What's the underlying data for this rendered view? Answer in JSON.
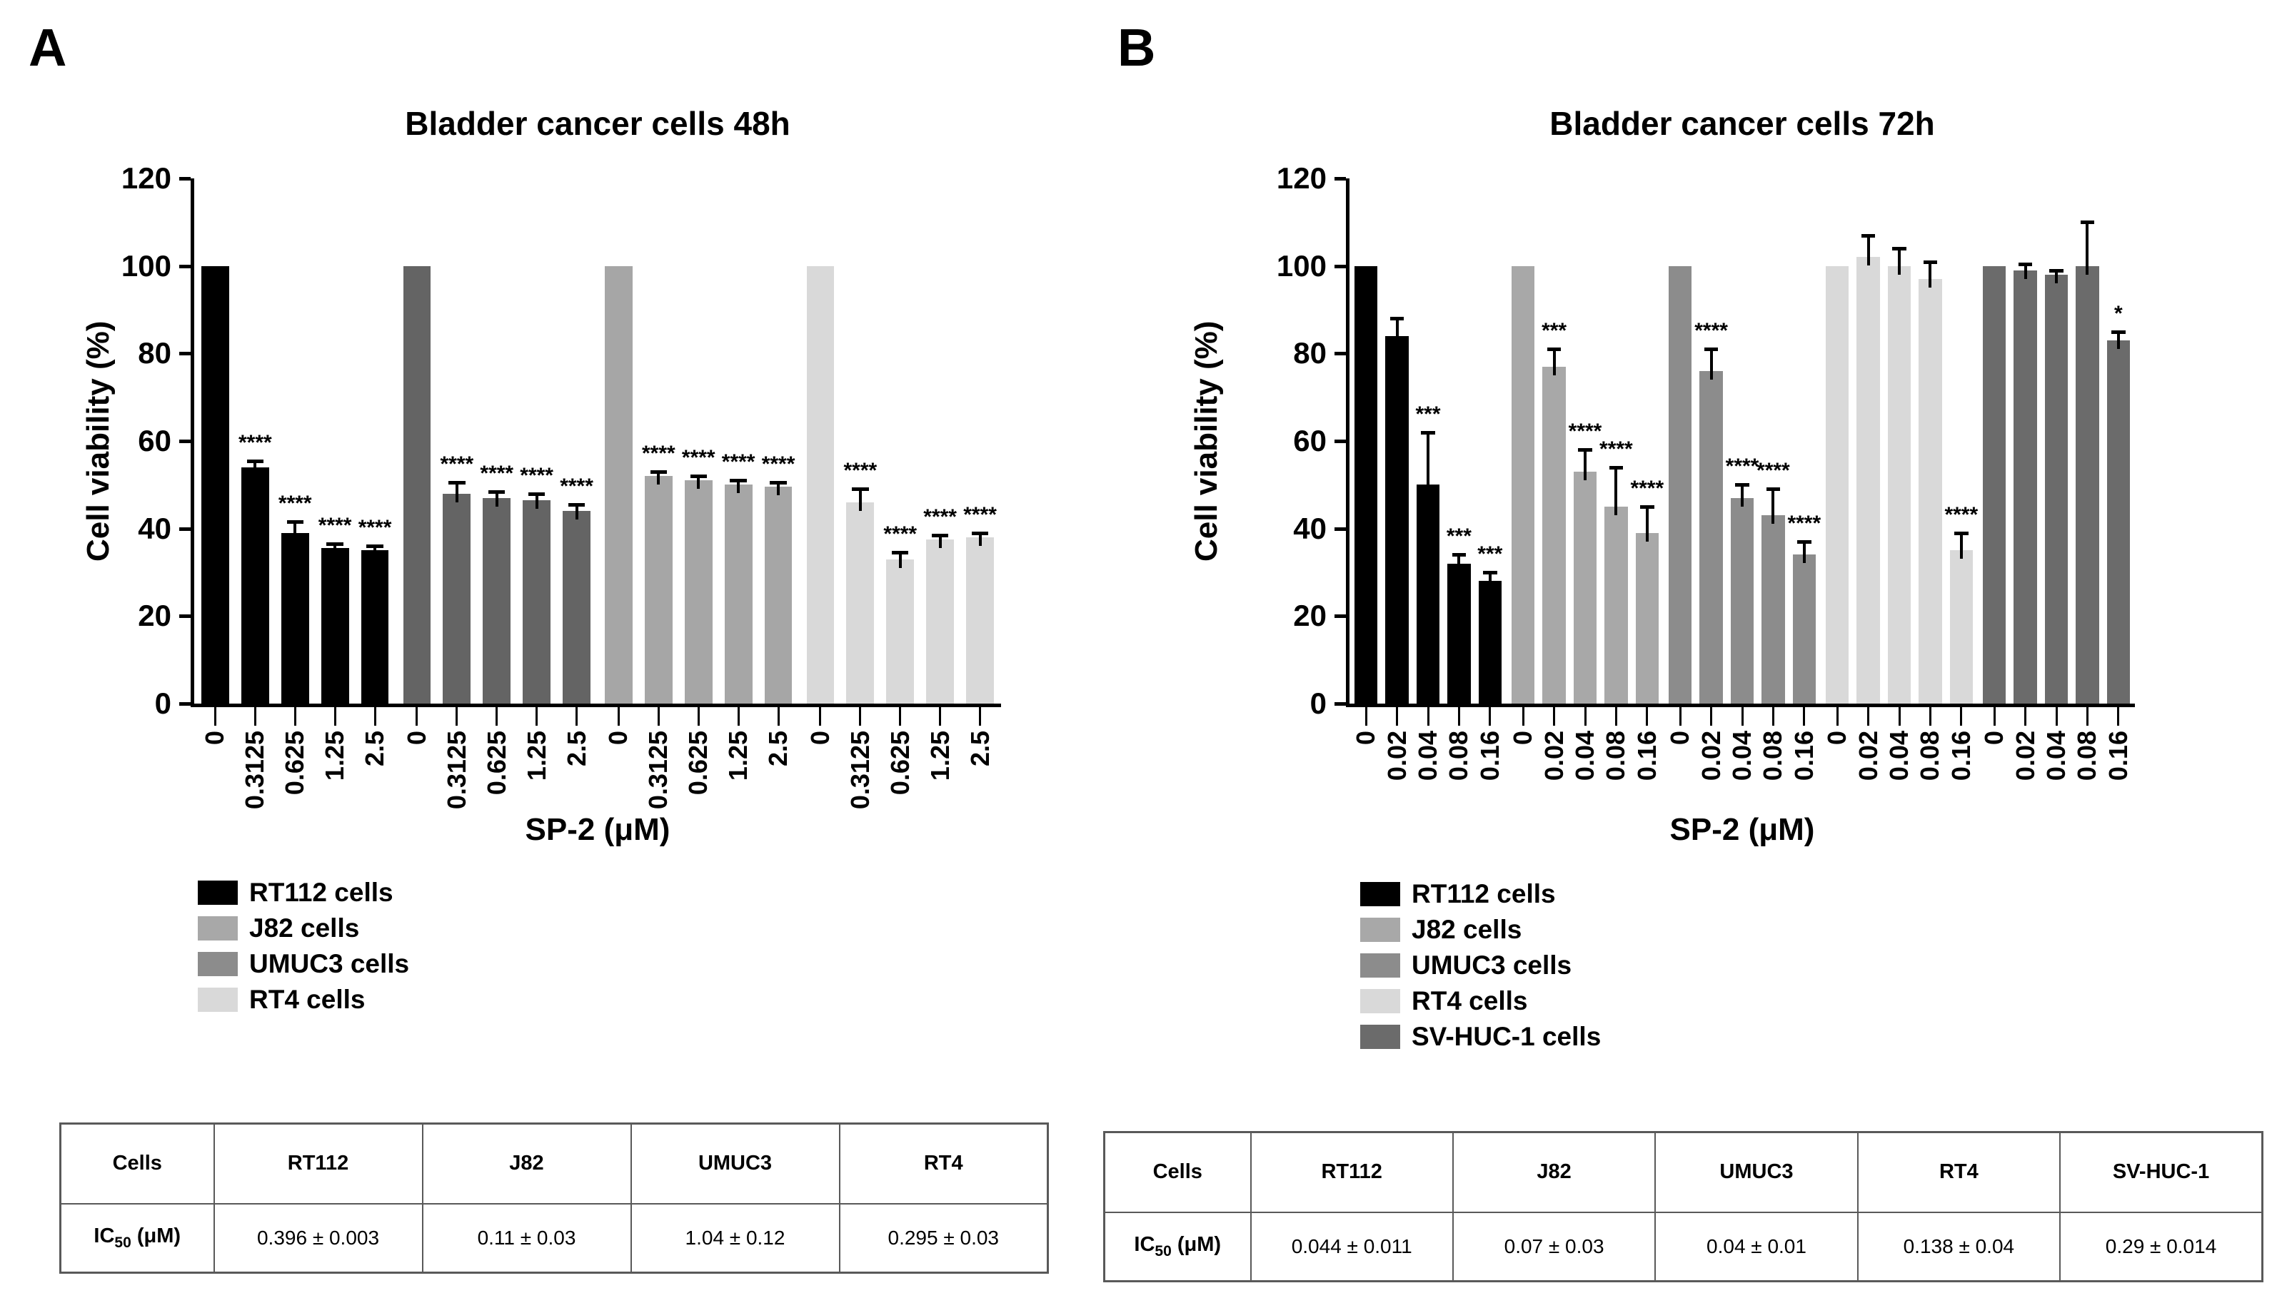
{
  "panels": [
    {
      "label": "A"
    },
    {
      "label": "B"
    }
  ],
  "chart_data": [
    {
      "type": "bar",
      "title": "Bladder cancer cells 48h",
      "xlabel": "SP-2 (μM)",
      "ylabel": "Cell viability (%)",
      "ylim": [
        0,
        120
      ],
      "yticks": [
        0,
        20,
        40,
        60,
        80,
        100,
        120
      ],
      "grid": false,
      "legend_position": "bottom-left",
      "categories": [
        "0",
        "0.3125",
        "0.625",
        "1.25",
        "2.5"
      ],
      "series": [
        {
          "name": "RT112 cells",
          "bar_color": "#000000",
          "legend_color": "#000000",
          "values": [
            100,
            54,
            39,
            35.5,
            35
          ],
          "errors": [
            0,
            1.5,
            2.5,
            1,
            1
          ],
          "significance": [
            "",
            "****",
            "****",
            "****",
            "****"
          ]
        },
        {
          "name": "J82 cells",
          "bar_color": "#646464",
          "legend_color": "#a8a8a8",
          "values": [
            100,
            48,
            47,
            46.5,
            44
          ],
          "errors": [
            0,
            2.5,
            1.5,
            1.5,
            1.5
          ],
          "significance": [
            "",
            "****",
            "****",
            "****",
            "****"
          ]
        },
        {
          "name": "UMUC3 cells",
          "bar_color": "#a6a6a6",
          "legend_color": "#8c8c8c",
          "values": [
            100,
            52,
            51,
            50,
            49.5
          ],
          "errors": [
            0,
            1,
            1,
            1,
            1
          ],
          "significance": [
            "",
            "****",
            "****",
            "****",
            "****"
          ]
        },
        {
          "name": "RT4 cells",
          "bar_color": "#d9d9d9",
          "legend_color": "#d9d9d9",
          "values": [
            100,
            46,
            33,
            37.5,
            38
          ],
          "errors": [
            0,
            3,
            1.5,
            1,
            1
          ],
          "significance": [
            "",
            "****",
            "****",
            "****",
            "****"
          ]
        }
      ]
    },
    {
      "type": "bar",
      "title": "Bladder cancer cells 72h",
      "xlabel": "SP-2 (μM)",
      "ylabel": "Cell viability (%)",
      "ylim": [
        0,
        120
      ],
      "yticks": [
        0,
        20,
        40,
        60,
        80,
        100,
        120
      ],
      "grid": false,
      "legend_position": "bottom-left",
      "categories": [
        "0",
        "0.02",
        "0.04",
        "0.08",
        "0.16"
      ],
      "series": [
        {
          "name": "RT112 cells",
          "bar_color": "#000000",
          "legend_color": "#000000",
          "values": [
            100,
            84,
            50,
            32,
            28
          ],
          "errors": [
            0,
            4,
            12,
            2,
            2
          ],
          "significance": [
            "",
            "",
            "***",
            "***",
            "***"
          ]
        },
        {
          "name": "J82 cells",
          "bar_color": "#a8a8a8",
          "legend_color": "#a8a8a8",
          "values": [
            100,
            77,
            53,
            45,
            39
          ],
          "errors": [
            0,
            4,
            5,
            9,
            6
          ],
          "significance": [
            "",
            "***",
            "****",
            "****",
            "****"
          ]
        },
        {
          "name": "UMUC3 cells",
          "bar_color": "#8c8c8c",
          "legend_color": "#8c8c8c",
          "values": [
            100,
            76,
            47,
            43,
            34
          ],
          "errors": [
            0,
            5,
            3,
            6,
            3
          ],
          "significance": [
            "",
            "****",
            "****",
            "****",
            "****"
          ]
        },
        {
          "name": "RT4 cells",
          "bar_color": "#d9d9d9",
          "legend_color": "#d9d9d9",
          "values": [
            100,
            102,
            100,
            97,
            35
          ],
          "errors": [
            0,
            5,
            4,
            4,
            4
          ],
          "significance": [
            "",
            "",
            "",
            "",
            "****"
          ]
        },
        {
          "name": "SV-HUC-1 cells",
          "bar_color": "#6b6b6b",
          "legend_color": "#6b6b6b",
          "values": [
            100,
            99,
            98,
            100,
            83
          ],
          "errors": [
            0,
            1.5,
            1,
            10,
            2
          ],
          "significance": [
            "",
            "",
            "",
            "",
            "*"
          ]
        }
      ]
    }
  ],
  "tables": [
    {
      "col_headers": [
        "Cells",
        "RT112",
        "J82",
        "UMUC3",
        "RT4"
      ],
      "row_label": {
        "base": "IC",
        "sub": "50",
        "unit": "(μM)"
      },
      "values": [
        "0.396 ± 0.003",
        "0.11 ± 0.03",
        "1.04 ± 0.12",
        "0.295 ± 0.03"
      ]
    },
    {
      "col_headers": [
        "Cells",
        "RT112",
        "J82",
        "UMUC3",
        "RT4",
        "SV-HUC-1"
      ],
      "row_label": {
        "base": "IC",
        "sub": "50",
        "unit": "(μM)"
      },
      "values": [
        "0.044 ± 0.011",
        "0.07 ± 0.03",
        "0.04 ± 0.01",
        "0.138 ± 0.04",
        "0.29 ± 0.014"
      ]
    }
  ]
}
